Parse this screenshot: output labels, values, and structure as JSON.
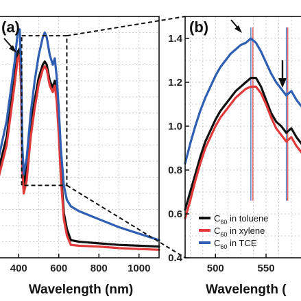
{
  "chart_data": [
    {
      "panel": "(a)",
      "type": "line",
      "title": "",
      "xlabel": "Wavelength (nm)",
      "ylabel": "",
      "xlim": [
        300,
        1100
      ],
      "ylim": [
        0,
        1.5
      ],
      "grid": true,
      "xticks": [
        400,
        600,
        800,
        1000
      ],
      "xtick_labels": [
        "400",
        "600",
        "800",
        "1000"
      ],
      "annotations": [
        {
          "type": "arrow",
          "x": 410,
          "y": 1.42
        }
      ],
      "zoom_box": {
        "x": [
          415,
          640
        ],
        "y": [
          0.45,
          1.38
        ]
      },
      "series": [
        {
          "color": "#111111",
          "x": [
            300,
            340,
            380,
            395,
            405,
            412,
            418,
            425,
            440,
            460,
            480,
            500,
            520,
            530,
            540,
            555,
            570,
            580,
            590,
            600,
            610,
            625,
            640,
            660,
            700,
            800,
            900,
            1000,
            1100
          ],
          "y": [
            0.55,
            0.75,
            1.12,
            1.28,
            1.3,
            1.1,
            0.62,
            0.45,
            0.55,
            0.82,
            0.98,
            1.12,
            1.2,
            1.22,
            1.2,
            1.1,
            1.06,
            1.1,
            1.0,
            0.8,
            0.55,
            0.28,
            0.18,
            0.11,
            0.1,
            0.09,
            0.08,
            0.075,
            0.07
          ]
        },
        {
          "color": "#e03a3a",
          "x": [
            300,
            340,
            380,
            395,
            405,
            412,
            418,
            425,
            440,
            460,
            480,
            500,
            520,
            530,
            540,
            555,
            570,
            580,
            590,
            600,
            610,
            625,
            640,
            660,
            700,
            800,
            900,
            1000,
            1100
          ],
          "y": [
            0.5,
            0.7,
            1.08,
            1.24,
            1.26,
            1.05,
            0.55,
            0.4,
            0.48,
            0.75,
            0.93,
            1.08,
            1.17,
            1.19,
            1.17,
            1.07,
            1.03,
            1.07,
            0.97,
            0.76,
            0.5,
            0.24,
            0.14,
            0.08,
            0.075,
            0.07,
            0.06,
            0.055,
            0.05
          ]
        },
        {
          "color": "#2f5fb3",
          "x": [
            300,
            340,
            380,
            395,
            405,
            412,
            418,
            425,
            440,
            460,
            480,
            500,
            520,
            530,
            540,
            555,
            570,
            580,
            590,
            600,
            610,
            625,
            640,
            660,
            700,
            800,
            900,
            1000,
            1100
          ],
          "y": [
            0.62,
            0.85,
            1.22,
            1.4,
            1.42,
            1.2,
            0.7,
            0.52,
            0.62,
            0.9,
            1.1,
            1.26,
            1.37,
            1.4,
            1.37,
            1.26,
            1.2,
            1.24,
            1.12,
            0.92,
            0.68,
            0.45,
            0.36,
            0.32,
            0.29,
            0.24,
            0.19,
            0.15,
            0.11
          ]
        }
      ]
    },
    {
      "panel": "(b)",
      "type": "line",
      "title": "",
      "xlabel": "Wavelength (",
      "ylabel": "",
      "xlim": [
        470,
        592
      ],
      "ylim": [
        0.4,
        1.5
      ],
      "grid": true,
      "xticks": [
        500,
        550
      ],
      "xtick_labels": [
        "500",
        "550"
      ],
      "yticks": [
        0.4,
        0.6,
        0.8,
        1.0,
        1.2,
        1.4
      ],
      "ytick_labels": [
        "0.4",
        "0.6",
        "0.8",
        "1.0",
        "1.2",
        "1.4"
      ],
      "legend_position": "bottom-right",
      "vertical_markers": [
        {
          "x": 535,
          "color": "#2f5fb3"
        },
        {
          "x": 537,
          "color": "#e03a3a"
        },
        {
          "x": 570,
          "color": "#2f5fb3"
        },
        {
          "x": 571.5,
          "color": "#e03a3a"
        }
      ],
      "annotations": [
        {
          "type": "arrow",
          "x": 533,
          "y": 1.38
        },
        {
          "type": "arrow",
          "x": 571,
          "y": 1.25
        }
      ],
      "series": [
        {
          "name_main": "C",
          "name_sub": "60",
          "name_rest": " in toluene",
          "color": "#111111",
          "x": [
            470,
            475,
            480,
            485,
            490,
            495,
            500,
            505,
            510,
            515,
            520,
            525,
            530,
            535,
            540,
            545,
            550,
            555,
            560,
            565,
            570,
            575,
            580,
            585,
            590,
            592
          ],
          "y": [
            0.62,
            0.7,
            0.78,
            0.86,
            0.93,
            0.98,
            1.03,
            1.07,
            1.1,
            1.13,
            1.16,
            1.18,
            1.2,
            1.22,
            1.22,
            1.18,
            1.12,
            1.06,
            1.02,
            1.0,
            0.97,
            0.99,
            0.95,
            0.92,
            0.96,
            0.98
          ]
        },
        {
          "name_main": "C",
          "name_sub": "60",
          "name_rest": " in xylene",
          "color": "#e03a3a",
          "x": [
            470,
            475,
            480,
            485,
            490,
            495,
            500,
            505,
            510,
            515,
            520,
            525,
            530,
            535,
            540,
            545,
            550,
            555,
            560,
            565,
            570,
            575,
            580,
            585,
            590,
            592
          ],
          "y": [
            0.58,
            0.66,
            0.75,
            0.83,
            0.9,
            0.95,
            1.0,
            1.04,
            1.07,
            1.1,
            1.13,
            1.15,
            1.17,
            1.18,
            1.18,
            1.15,
            1.1,
            1.04,
            0.99,
            0.96,
            0.93,
            0.95,
            0.91,
            0.88,
            0.92,
            0.94
          ]
        },
        {
          "name_main": "C",
          "name_sub": "60",
          "name_rest": " in TCE",
          "color": "#2f5fb3",
          "x": [
            470,
            475,
            480,
            485,
            490,
            495,
            500,
            505,
            510,
            515,
            520,
            525,
            530,
            535,
            540,
            545,
            550,
            555,
            560,
            565,
            570,
            575,
            580,
            585,
            590,
            592
          ],
          "y": [
            0.83,
            0.92,
            1.0,
            1.07,
            1.13,
            1.18,
            1.23,
            1.27,
            1.3,
            1.33,
            1.35,
            1.37,
            1.38,
            1.4,
            1.38,
            1.34,
            1.29,
            1.24,
            1.2,
            1.17,
            1.14,
            1.16,
            1.12,
            1.09,
            1.13,
            1.15
          ]
        }
      ]
    }
  ]
}
